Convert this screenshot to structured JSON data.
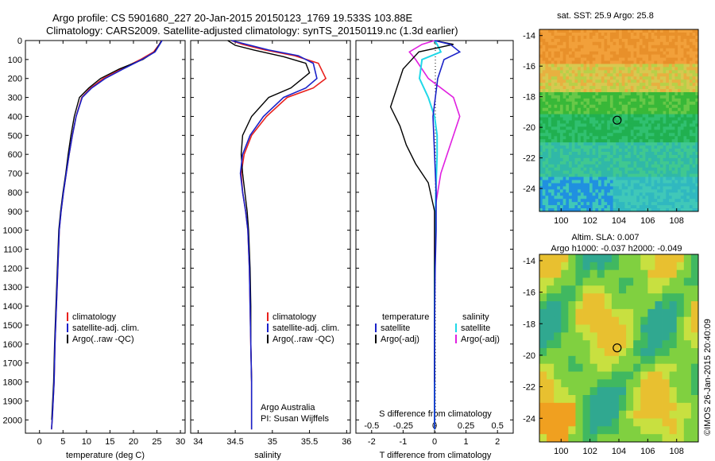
{
  "header": {
    "line1": "Argo profile: CS 5901680_227 20-Jan-2015 20150123_1769 19.533S 103.88E",
    "line2": "Climatology: CARS2009. Satellite-adjusted climatology: synTS_20150119.nc (1.3d earlier)"
  },
  "watermark": "©IMOS 26-Jan-2015 20:40:09",
  "colors": {
    "climatology": "#e8201c",
    "satellite": "#1a22c8",
    "argo": "#000000",
    "sal_satellite": "#20d8e8",
    "sal_argo": "#e020e0"
  },
  "axes_text": {
    "depth_ticks": [
      0,
      100,
      200,
      300,
      400,
      500,
      600,
      700,
      800,
      900,
      1000,
      1100,
      1200,
      1300,
      1400,
      1500,
      1600,
      1700,
      1800,
      1900,
      2000
    ],
    "temp_ticks": [
      "0",
      "5",
      "10",
      "15",
      "20",
      "25",
      "30"
    ],
    "temp_xlabel": "temperature (deg C)",
    "sal_ticks": [
      "34",
      "34.5",
      "35",
      "35.5",
      "36"
    ],
    "sal_xlabel": "salinity",
    "diff_T_ticks": [
      "-2",
      "-1",
      "0",
      "1",
      "2"
    ],
    "diff_T_label": "T difference from climatology",
    "diff_S_ticks": [
      "-0.5",
      "-0.25",
      "0",
      "0.25",
      "0.5"
    ],
    "diff_S_label": "S difference from climatology"
  },
  "legends": {
    "profile": [
      "climatology",
      "satellite-adj. clim.",
      "Argo(..raw -QC)"
    ],
    "diff_temperature_title": "temperature",
    "diff_salinity_title": "salinity",
    "diff_temperature": [
      "satellite",
      "Argo(-adj)"
    ],
    "diff_salinity": [
      "satellite",
      "Argo(-adj)"
    ]
  },
  "credit": {
    "line1": "Argo Australia",
    "line2": "PI: Susan Wijffels"
  },
  "maps": {
    "sst_title": "sat. SST: 25.9  Argo: 25.8",
    "sla_title_line1": "Altim. SLA: 0.007",
    "sla_title_line2": "Argo h1000: -0.037 h2000: -0.049",
    "lat_ticks": [
      "-14",
      "-16",
      "-18",
      "-20",
      "-22",
      "-24"
    ],
    "lon_ticks": [
      "100",
      "102",
      "104",
      "106",
      "108"
    ],
    "argo_position": {
      "lon": 103.88,
      "lat": -19.533
    }
  },
  "chart_data": [
    {
      "type": "line",
      "xlabel": "temperature (deg C)",
      "ylabel": "",
      "xlim": [
        -3,
        31
      ],
      "ylim": [
        2070,
        0
      ],
      "series": [
        {
          "name": "climatology",
          "x": [
            26.0,
            25.5,
            24.3,
            21.5,
            17.5,
            13.6,
            10.9,
            9.0,
            7.8,
            7.0,
            6.3,
            5.7,
            5.1,
            4.6,
            4.2,
            3.9,
            3.6,
            3.3,
            3.1,
            2.9,
            2.7,
            2.55
          ],
          "y": [
            0,
            20,
            60,
            100,
            150,
            200,
            250,
            300,
            400,
            500,
            600,
            700,
            800,
            900,
            1000,
            1200,
            1400,
            1600,
            1800,
            1900,
            2000,
            2050
          ]
        },
        {
          "name": "satellite-adj. clim.",
          "x": [
            26.1,
            25.6,
            24.6,
            21.8,
            17.8,
            14.0,
            11.1,
            9.1,
            7.8,
            7.0,
            6.3,
            5.7,
            5.1,
            4.6,
            4.2,
            3.9,
            3.6,
            3.3,
            3.1,
            2.9,
            2.7,
            2.55
          ],
          "y": [
            0,
            20,
            60,
            100,
            150,
            200,
            250,
            300,
            400,
            500,
            600,
            700,
            800,
            900,
            1000,
            1200,
            1400,
            1600,
            1800,
            1900,
            2000,
            2050
          ]
        },
        {
          "name": "Argo(..raw -QC)",
          "x": [
            26.0,
            25.5,
            24.5,
            22.0,
            17.0,
            13.0,
            10.5,
            8.5,
            7.4,
            6.7,
            6.1,
            5.6,
            5.0,
            4.5,
            4.1,
            3.8,
            3.5,
            3.2,
            3.0,
            2.8,
            2.6
          ],
          "y": [
            0,
            20,
            60,
            100,
            150,
            200,
            250,
            300,
            400,
            500,
            600,
            700,
            800,
            900,
            1000,
            1200,
            1400,
            1600,
            1800,
            1900,
            2000
          ]
        }
      ]
    },
    {
      "type": "line",
      "xlabel": "salinity",
      "ylabel": "",
      "xlim": [
        33.9,
        36.05
      ],
      "ylim": [
        2070,
        0
      ],
      "series": [
        {
          "name": "climatology",
          "x": [
            34.45,
            34.6,
            34.9,
            35.3,
            35.62,
            35.72,
            35.55,
            35.2,
            34.92,
            34.72,
            34.62,
            34.58,
            34.6,
            34.64,
            34.67,
            34.69,
            34.7,
            34.71,
            34.72,
            34.72
          ],
          "y": [
            0,
            20,
            50,
            80,
            120,
            200,
            250,
            300,
            400,
            500,
            600,
            700,
            800,
            900,
            1000,
            1200,
            1400,
            1600,
            1800,
            2050
          ]
        },
        {
          "name": "satellite-adj. clim.",
          "x": [
            34.45,
            34.65,
            34.95,
            35.35,
            35.55,
            35.6,
            35.45,
            35.15,
            34.88,
            34.7,
            34.6,
            34.57,
            34.6,
            34.64,
            34.67,
            34.69,
            34.7,
            34.71,
            34.72,
            34.72
          ],
          "y": [
            0,
            20,
            50,
            80,
            120,
            200,
            250,
            300,
            400,
            500,
            600,
            700,
            800,
            900,
            1000,
            1200,
            1400,
            1600,
            1800,
            2050
          ]
        },
        {
          "name": "Argo(..raw -QC)",
          "x": [
            34.4,
            34.5,
            34.75,
            35.15,
            35.45,
            35.5,
            35.25,
            34.95,
            34.72,
            34.6,
            34.58,
            34.6,
            34.63,
            34.66,
            34.68,
            34.7,
            34.71,
            34.71,
            34.72
          ],
          "y": [
            0,
            25,
            50,
            85,
            120,
            170,
            250,
            300,
            400,
            500,
            600,
            700,
            800,
            900,
            1000,
            1200,
            1400,
            1600,
            1800
          ]
        }
      ]
    },
    {
      "type": "line",
      "xlabel": "T difference from climatology",
      "ylabel": "",
      "xlim": [
        -2.5,
        2.5
      ],
      "ylim": [
        2070,
        0
      ],
      "series": [
        {
          "name": "satellite",
          "x": [
            0.0,
            0.5,
            0.8,
            0.3,
            0.1,
            -0.05,
            0.0,
            0.05,
            0.05,
            0.02,
            0.0,
            0.0,
            0.0
          ],
          "y": [
            0,
            20,
            60,
            100,
            200,
            400,
            600,
            800,
            1000,
            1200,
            1500,
            1800,
            2050
          ]
        },
        {
          "name": "Argo(-adj)",
          "x": [
            0.0,
            0.6,
            -0.5,
            -1.0,
            -1.2,
            -1.4,
            -1.1,
            -0.9,
            -0.6,
            -0.2,
            0.0,
            0.0,
            0.0
          ],
          "y": [
            0,
            20,
            60,
            150,
            250,
            350,
            450,
            550,
            650,
            750,
            900,
            1200,
            1800
          ]
        }
      ]
    },
    {
      "type": "line",
      "xlabel": "S difference from climatology",
      "ylabel": "",
      "xlim": [
        -0.625,
        0.625
      ],
      "ylim": [
        2070,
        0
      ],
      "series": [
        {
          "name": "satellite",
          "x": [
            0.0,
            0.02,
            0.05,
            -0.1,
            -0.12,
            -0.05,
            0.0,
            0.02,
            0.02,
            0.01,
            0.0,
            0.0,
            0.0
          ],
          "y": [
            0,
            20,
            60,
            100,
            200,
            300,
            400,
            500,
            600,
            800,
            1200,
            1600,
            2050
          ]
        },
        {
          "name": "Argo(-adj)",
          "x": [
            0.0,
            -0.1,
            -0.2,
            -0.15,
            -0.05,
            0.15,
            0.2,
            0.15,
            0.1,
            0.05,
            0.0,
            0.0,
            0.0
          ],
          "y": [
            0,
            20,
            60,
            100,
            200,
            300,
            400,
            500,
            600,
            700,
            900,
            1400,
            1900
          ]
        }
      ]
    }
  ]
}
